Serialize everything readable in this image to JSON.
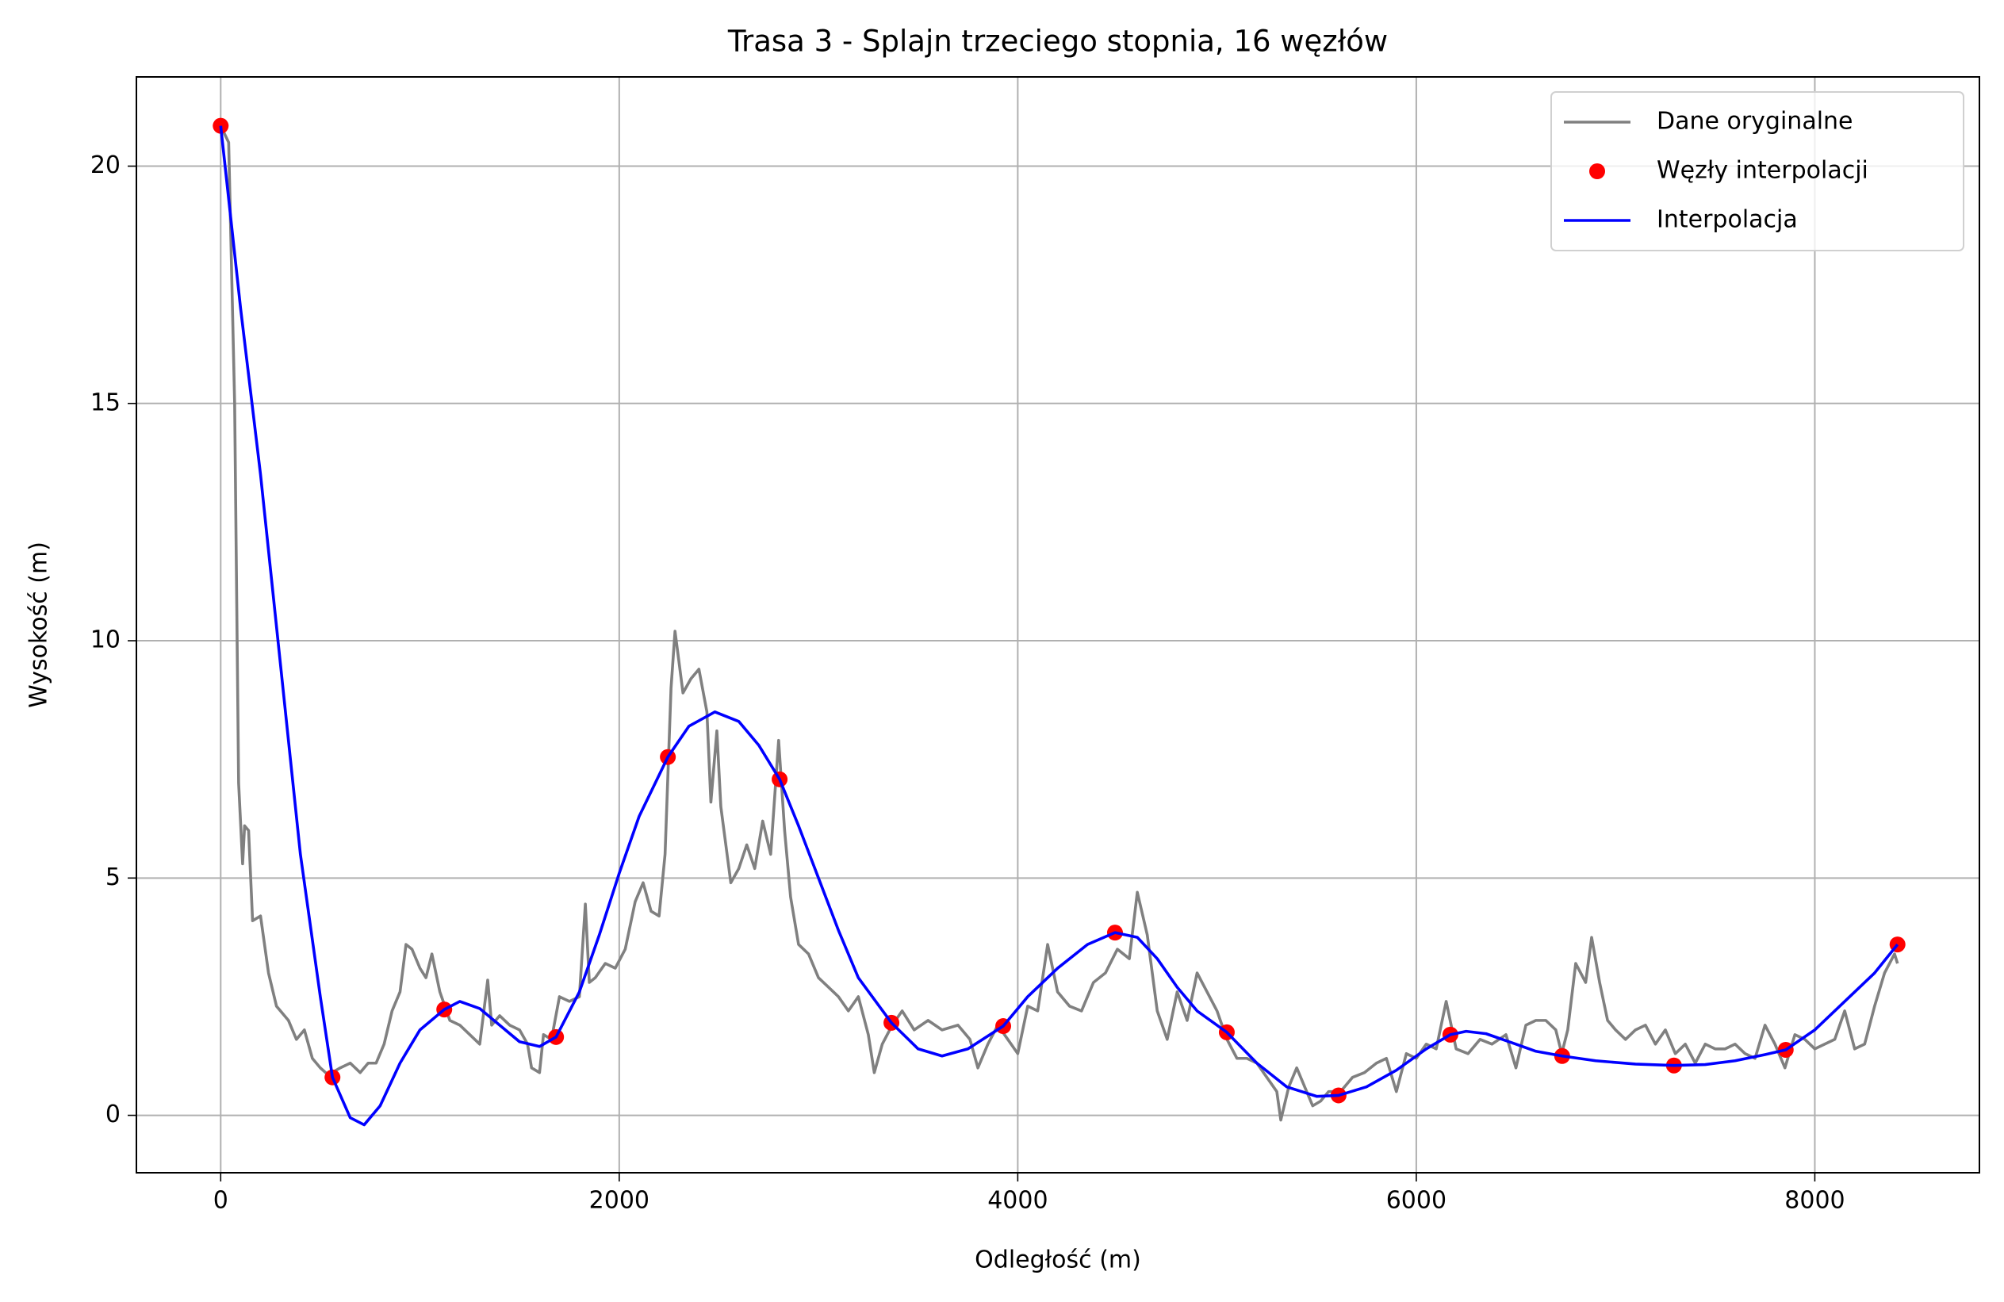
{
  "chart_data": {
    "type": "line",
    "title": "Trasa 3 - Splajn trzeciego stopnia, 16 węzłów",
    "xlabel": "Odległość (m)",
    "ylabel": "Wysokość (m)",
    "xlim": [
      -423,
      8826
    ],
    "ylim": [
      -1.21,
      21.88
    ],
    "xticks": [
      0,
      2000,
      4000,
      6000,
      8000
    ],
    "yticks": [
      0,
      5,
      10,
      15,
      20
    ],
    "grid": true,
    "legend": "upper right",
    "series": [
      {
        "name": "Dane oryginalne",
        "color": "#808080",
        "mode": "line",
        "x": [
          0,
          40,
          70,
          90,
          110,
          120,
          140,
          160,
          200,
          240,
          280,
          340,
          380,
          420,
          460,
          500,
          540,
          600,
          650,
          700,
          740,
          780,
          820,
          860,
          900,
          930,
          960,
          1000,
          1030,
          1060,
          1100,
          1150,
          1200,
          1250,
          1300,
          1340,
          1360,
          1400,
          1450,
          1500,
          1540,
          1560,
          1600,
          1620,
          1660,
          1700,
          1750,
          1800,
          1830,
          1850,
          1880,
          1930,
          1980,
          2030,
          2080,
          2120,
          2160,
          2200,
          2230,
          2260,
          2280,
          2320,
          2360,
          2400,
          2440,
          2460,
          2490,
          2510,
          2560,
          2600,
          2640,
          2680,
          2720,
          2760,
          2800,
          2830,
          2860,
          2900,
          2950,
          3000,
          3050,
          3100,
          3150,
          3200,
          3250,
          3280,
          3320,
          3370,
          3420,
          3480,
          3550,
          3620,
          3700,
          3760,
          3800,
          3850,
          3900,
          3950,
          4000,
          4050,
          4100,
          4150,
          4200,
          4260,
          4320,
          4380,
          4440,
          4500,
          4560,
          4600,
          4650,
          4700,
          4750,
          4800,
          4850,
          4900,
          4950,
          5000,
          5050,
          5100,
          5150,
          5200,
          5250,
          5300,
          5320,
          5360,
          5400,
          5440,
          5480,
          5520,
          5560,
          5620,
          5680,
          5740,
          5800,
          5850,
          5900,
          5950,
          6000,
          6050,
          6100,
          6150,
          6200,
          6260,
          6320,
          6380,
          6450,
          6500,
          6550,
          6600,
          6650,
          6700,
          6730,
          6760,
          6800,
          6850,
          6880,
          6920,
          6960,
          7000,
          7050,
          7100,
          7150,
          7200,
          7250,
          7300,
          7350,
          7400,
          7450,
          7500,
          7550,
          7600,
          7650,
          7700,
          7750,
          7800,
          7850,
          7900,
          7950,
          8000,
          8050,
          8100,
          8150,
          8200,
          8250,
          8300,
          8350,
          8400,
          8415
        ],
        "values": [
          20.85,
          20.5,
          15,
          7,
          5.3,
          6.1,
          6,
          4.1,
          4.2,
          3,
          2.3,
          2,
          1.6,
          1.8,
          1.2,
          1.0,
          0.85,
          1.0,
          1.1,
          0.9,
          1.1,
          1.1,
          1.5,
          2.2,
          2.6,
          3.6,
          3.5,
          3.1,
          2.9,
          3.4,
          2.6,
          2.0,
          1.9,
          1.7,
          1.5,
          2.85,
          1.9,
          2.1,
          1.9,
          1.8,
          1.5,
          1.0,
          0.9,
          1.7,
          1.6,
          2.5,
          2.4,
          2.5,
          4.45,
          2.8,
          2.9,
          3.2,
          3.1,
          3.5,
          4.5,
          4.9,
          4.3,
          4.2,
          5.5,
          9,
          10.2,
          8.9,
          9.2,
          9.4,
          8.5,
          6.6,
          8.1,
          6.5,
          4.9,
          5.2,
          5.7,
          5.2,
          6.2,
          5.5,
          7.9,
          6.0,
          4.6,
          3.6,
          3.4,
          2.9,
          2.7,
          2.5,
          2.2,
          2.5,
          1.7,
          0.9,
          1.5,
          1.9,
          2.2,
          1.8,
          2.0,
          1.8,
          1.9,
          1.6,
          1.0,
          1.5,
          1.9,
          1.6,
          1.3,
          2.3,
          2.2,
          3.6,
          2.6,
          2.3,
          2.2,
          2.8,
          3.0,
          3.5,
          3.3,
          4.7,
          3.8,
          2.2,
          1.6,
          2.6,
          2.0,
          3.0,
          2.6,
          2.2,
          1.6,
          1.2,
          1.2,
          1.1,
          0.8,
          0.5,
          -0.1,
          0.6,
          1.0,
          0.6,
          0.2,
          0.3,
          0.5,
          0.5,
          0.8,
          0.9,
          1.1,
          1.2,
          0.5,
          1.3,
          1.2,
          1.5,
          1.4,
          2.4,
          1.4,
          1.3,
          1.6,
          1.5,
          1.7,
          1.0,
          1.9,
          2.0,
          2.0,
          1.8,
          1.3,
          1.8,
          3.2,
          2.8,
          3.75,
          2.8,
          2.0,
          1.8,
          1.6,
          1.8,
          1.9,
          1.5,
          1.8,
          1.3,
          1.5,
          1.1,
          1.5,
          1.4,
          1.4,
          1.5,
          1.3,
          1.2,
          1.9,
          1.5,
          1.0,
          1.7,
          1.6,
          1.4,
          1.5,
          1.6,
          2.2,
          1.4,
          1.5,
          2.3,
          3.0,
          3.4,
          3.2
        ]
      },
      {
        "name": "Węzły interpolacji",
        "color": "#ff0000",
        "mode": "markers",
        "x": [
          0,
          561,
          1122,
          1683,
          2244,
          2805,
          3366,
          3927,
          4488,
          5049,
          5610,
          6171,
          6732,
          7293,
          7854,
          8415
        ],
        "values": [
          20.85,
          0.8,
          2.23,
          1.65,
          7.55,
          7.08,
          1.95,
          1.88,
          3.85,
          1.75,
          0.42,
          1.7,
          1.25,
          1.05,
          1.38,
          3.6
        ]
      },
      {
        "name": "Interpolacja",
        "color": "#0000ff",
        "mode": "line",
        "x": [
          0,
          100,
          200,
          300,
          400,
          500,
          561,
          650,
          720,
          800,
          900,
          1000,
          1122,
          1200,
          1300,
          1400,
          1500,
          1600,
          1683,
          1800,
          1900,
          2000,
          2100,
          2244,
          2350,
          2480,
          2600,
          2700,
          2805,
          2900,
          3000,
          3100,
          3200,
          3366,
          3500,
          3620,
          3750,
          3927,
          4050,
          4200,
          4350,
          4488,
          4600,
          4700,
          4800,
          4900,
          5049,
          5200,
          5350,
          5500,
          5610,
          5750,
          5900,
          6050,
          6171,
          6250,
          6350,
          6500,
          6600,
          6732,
          6900,
          7100,
          7293,
          7450,
          7600,
          7750,
          7854,
          8000,
          8150,
          8300,
          8415
        ],
        "values": [
          20.85,
          17,
          13.5,
          9.5,
          5.5,
          2.5,
          0.8,
          -0.05,
          -0.2,
          0.2,
          1.1,
          1.8,
          2.23,
          2.4,
          2.25,
          1.9,
          1.55,
          1.45,
          1.65,
          2.6,
          3.8,
          5.1,
          6.3,
          7.55,
          8.2,
          8.5,
          8.3,
          7.8,
          7.08,
          6.1,
          5.0,
          3.9,
          2.9,
          1.95,
          1.4,
          1.25,
          1.4,
          1.88,
          2.5,
          3.1,
          3.6,
          3.85,
          3.75,
          3.3,
          2.7,
          2.2,
          1.75,
          1.1,
          0.6,
          0.4,
          0.42,
          0.6,
          0.95,
          1.4,
          1.7,
          1.77,
          1.72,
          1.5,
          1.35,
          1.25,
          1.15,
          1.08,
          1.05,
          1.07,
          1.15,
          1.28,
          1.38,
          1.8,
          2.4,
          3.0,
          3.6
        ]
      }
    ]
  }
}
